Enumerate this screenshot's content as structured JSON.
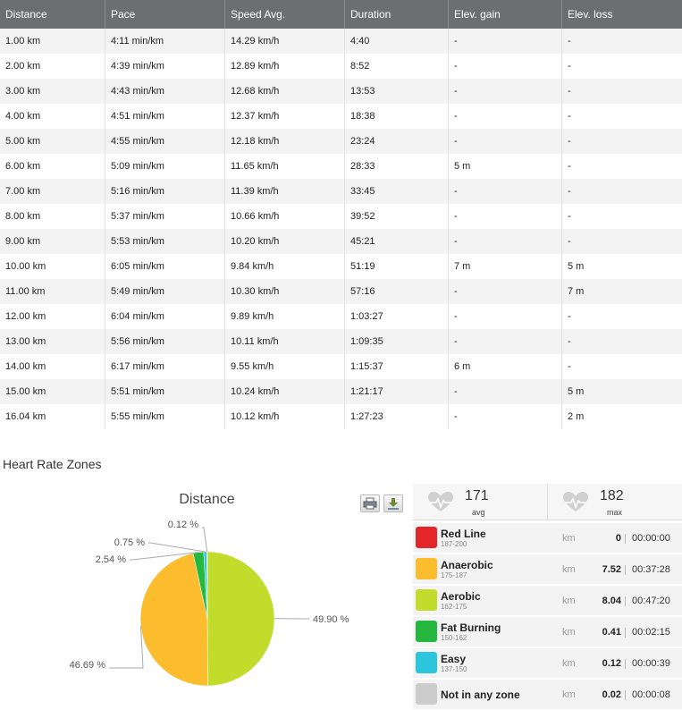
{
  "splits": {
    "headers": [
      "Distance",
      "Pace",
      "Speed Avg.",
      "Duration",
      "Elev. gain",
      "Elev. loss"
    ],
    "rows": [
      [
        "1.00 km",
        "4:11 min/km",
        "14.29 km/h",
        "4:40",
        "-",
        "-"
      ],
      [
        "2.00 km",
        "4:39 min/km",
        "12.89 km/h",
        "8:52",
        "-",
        "-"
      ],
      [
        "3.00 km",
        "4:43 min/km",
        "12.68 km/h",
        "13:53",
        "-",
        "-"
      ],
      [
        "4.00 km",
        "4:51 min/km",
        "12.37 km/h",
        "18:38",
        "-",
        "-"
      ],
      [
        "5.00 km",
        "4:55 min/km",
        "12.18 km/h",
        "23:24",
        "-",
        "-"
      ],
      [
        "6.00 km",
        "5:09 min/km",
        "11.65 km/h",
        "28:33",
        "5 m",
        "-"
      ],
      [
        "7.00 km",
        "5:16 min/km",
        "11.39 km/h",
        "33:45",
        "-",
        "-"
      ],
      [
        "8.00 km",
        "5:37 min/km",
        "10.66 km/h",
        "39:52",
        "-",
        "-"
      ],
      [
        "9.00 km",
        "5:53 min/km",
        "10.20 km/h",
        "45:21",
        "-",
        "-"
      ],
      [
        "10.00 km",
        "6:05 min/km",
        "9.84 km/h",
        "51:19",
        "7 m",
        "5 m"
      ],
      [
        "11.00 km",
        "5:49 min/km",
        "10.30 km/h",
        "57:16",
        "-",
        "7 m"
      ],
      [
        "12.00 km",
        "6:04 min/km",
        "9.89 km/h",
        "1:03:27",
        "-",
        "-"
      ],
      [
        "13.00 km",
        "5:56 min/km",
        "10.11 km/h",
        "1:09:35",
        "-",
        "-"
      ],
      [
        "14.00 km",
        "6:17 min/km",
        "9.55 km/h",
        "1:15:37",
        "6 m",
        "-"
      ],
      [
        "15.00 km",
        "5:51 min/km",
        "10.24 km/h",
        "1:21:17",
        "-",
        "5 m"
      ],
      [
        "16.04 km",
        "5:55 min/km",
        "10.12 km/h",
        "1:27:23",
        "-",
        "2 m"
      ]
    ]
  },
  "hr_section_title": "Heart Rate Zones",
  "chart_toolbar": {
    "print_icon": "print-icon",
    "download_icon": "download-icon"
  },
  "chart_data": {
    "type": "pie",
    "title": "Distance",
    "slices": [
      {
        "label": "49.90 %",
        "value": 49.9,
        "color": "#c2dc2c"
      },
      {
        "label": "46.69 %",
        "value": 46.69,
        "color": "#fbbd2d"
      },
      {
        "label": "2.54 %",
        "value": 2.54,
        "color": "#26b73e"
      },
      {
        "label": "0.75 %",
        "value": 0.75,
        "color": "#2bc6dd"
      },
      {
        "label": "0.12 %",
        "value": 0.12,
        "color": "#cccccc"
      }
    ]
  },
  "hr_summary": {
    "avg_value": "171",
    "avg_label": "avg",
    "max_value": "182",
    "max_label": "max"
  },
  "zones": [
    {
      "name": "Red Line",
      "range": "187-200",
      "unit": "km",
      "distance": "0",
      "time": "00:00:00",
      "color": "#e3262a"
    },
    {
      "name": "Anaerobic",
      "range": "175-187",
      "unit": "km",
      "distance": "7.52",
      "time": "00:37:28",
      "color": "#fbbd2d"
    },
    {
      "name": "Aerobic",
      "range": "162-175",
      "unit": "km",
      "distance": "8.04",
      "time": "00:47:20",
      "color": "#c2dc2c"
    },
    {
      "name": "Fat Burning",
      "range": "150-162",
      "unit": "km",
      "distance": "0.41",
      "time": "00:02:15",
      "color": "#26b73e"
    },
    {
      "name": "Easy",
      "range": "137-150",
      "unit": "km",
      "distance": "0.12",
      "time": "00:00:39",
      "color": "#2bc6dd"
    },
    {
      "name": "Not in any zone",
      "range": "",
      "unit": "km",
      "distance": "0.02",
      "time": "00:00:08",
      "color": "#cccccc"
    }
  ]
}
